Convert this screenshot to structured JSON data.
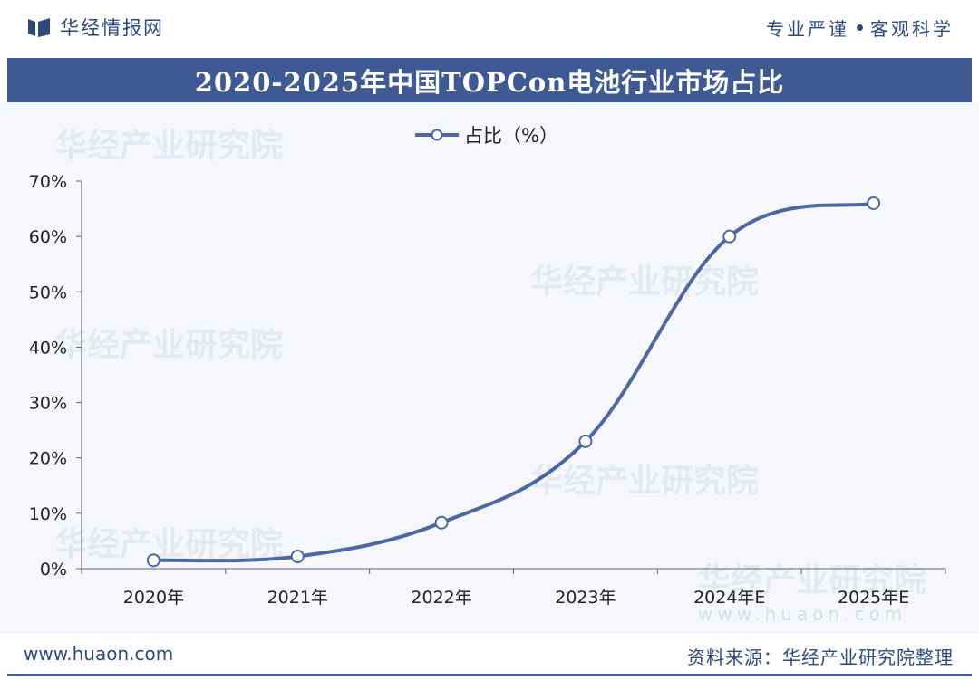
{
  "header": {
    "brand_name": "华经情报网",
    "slogan_left": "专业严谨",
    "slogan_right": "客观科学"
  },
  "title": "2020-2025年中国TOPCon电池行业市场占比",
  "watermark_text": "华经产业研究院",
  "watermark_url": "www.huaon.com",
  "footer": {
    "url": "www.huaon.com",
    "source": "资料来源：华经产业研究院整理"
  },
  "colors": {
    "brand": "#2b4a7e",
    "title_bar": "#3d5a94",
    "series_line": "#4a68a3",
    "chart_background": "#f5f7fb"
  },
  "chart_data": {
    "type": "line",
    "categories": [
      "2020年",
      "2021年",
      "2022年",
      "2023年",
      "2024年E",
      "2025年E"
    ],
    "series": [
      {
        "name": "占比（%）",
        "values": [
          1.5,
          2.2,
          8.3,
          23,
          60,
          66
        ]
      }
    ],
    "ylim": [
      0,
      70
    ],
    "yticks": [
      "0%",
      "10%",
      "20%",
      "30%",
      "40%",
      "50%",
      "60%",
      "70%"
    ],
    "legend_position": "top-center",
    "smooth": true,
    "grid": false
  }
}
